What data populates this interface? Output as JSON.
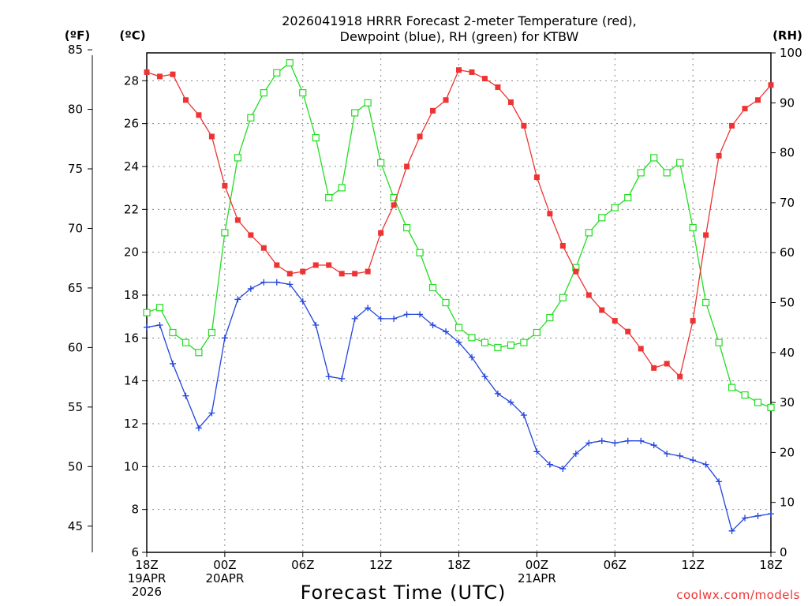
{
  "chart_data": {
    "type": "line",
    "title_line1": "2026041918 HRRR Forecast 2-meter Temperature (red),",
    "title_line2": "Dewpoint (blue), RH (green) for KTBW",
    "xlabel": "Forecast Time (UTC)",
    "units_f": "(ºF)",
    "units_c": "(ºC)",
    "units_rh": "(RH)",
    "credit": "coolwx.com/models",
    "x_range": [
      0,
      48
    ],
    "x_ticks": [
      {
        "hour": 0,
        "lines": [
          "18Z",
          "19APR",
          "2026"
        ]
      },
      {
        "hour": 6,
        "lines": [
          "00Z",
          "20APR"
        ]
      },
      {
        "hour": 12,
        "lines": [
          "06Z"
        ]
      },
      {
        "hour": 18,
        "lines": [
          "12Z"
        ]
      },
      {
        "hour": 24,
        "lines": [
          "18Z"
        ]
      },
      {
        "hour": 30,
        "lines": [
          "00Z",
          "21APR"
        ]
      },
      {
        "hour": 36,
        "lines": [
          "06Z"
        ]
      },
      {
        "hour": 42,
        "lines": [
          "12Z"
        ]
      },
      {
        "hour": 48,
        "lines": [
          "18Z"
        ]
      }
    ],
    "celsius_axis": {
      "range": [
        6,
        29.3
      ],
      "ticks": [
        6,
        8,
        10,
        12,
        14,
        16,
        18,
        20,
        22,
        24,
        26,
        28
      ]
    },
    "fahrenheit_axis": {
      "range": [
        42.8,
        84.74
      ],
      "ticks": [
        45,
        50,
        55,
        60,
        65,
        70,
        75,
        80,
        85
      ]
    },
    "rh_axis": {
      "range": [
        0,
        100
      ],
      "ticks": [
        0,
        10,
        20,
        30,
        40,
        50,
        60,
        70,
        80,
        90,
        100
      ]
    },
    "series": [
      {
        "name": "2-meter Temperature",
        "color": "#ee3333",
        "marker": "filled-square",
        "unit": "C",
        "values": [
          28.4,
          28.2,
          28.3,
          27.1,
          26.4,
          25.4,
          23.1,
          21.5,
          20.8,
          20.2,
          19.4,
          19.0,
          19.1,
          19.4,
          19.4,
          19.0,
          19.0,
          19.1,
          20.9,
          22.2,
          24.0,
          25.4,
          26.6,
          27.1,
          28.5,
          28.4,
          28.1,
          27.7,
          27.0,
          25.9,
          23.5,
          21.8,
          20.3,
          19.1,
          18.0,
          17.3,
          16.8,
          16.3,
          15.5,
          14.6,
          14.8,
          14.2,
          16.8,
          20.8,
          24.5,
          25.9,
          26.7,
          27.1,
          27.8
        ]
      },
      {
        "name": "Dewpoint",
        "color": "#2244dd",
        "marker": "plus",
        "unit": "C",
        "values": [
          16.5,
          16.6,
          14.8,
          13.3,
          11.8,
          12.5,
          16.0,
          17.8,
          18.3,
          18.6,
          18.6,
          18.5,
          17.7,
          16.6,
          14.2,
          14.1,
          16.9,
          17.4,
          16.9,
          16.9,
          17.1,
          17.1,
          16.6,
          16.3,
          15.8,
          15.1,
          14.2,
          13.4,
          13.0,
          12.4,
          10.7,
          10.1,
          9.9,
          10.6,
          11.1,
          11.2,
          11.1,
          11.2,
          11.2,
          11.0,
          10.6,
          10.5,
          10.3,
          10.1,
          9.3,
          7.0,
          7.6,
          7.7,
          7.8
        ]
      },
      {
        "name": "RH",
        "color": "#22dd22",
        "marker": "open-square",
        "unit": "%",
        "values": [
          48,
          49,
          44,
          42,
          40,
          44,
          64,
          79,
          87,
          92,
          96,
          98,
          92,
          83,
          71,
          73,
          88,
          90,
          78,
          71,
          65,
          60,
          53,
          50,
          45,
          43,
          42,
          41,
          41.5,
          42,
          44,
          47,
          51,
          57,
          64,
          67,
          69,
          71,
          76,
          79,
          76,
          78,
          65,
          50,
          42,
          33,
          31.5,
          30,
          29
        ]
      }
    ]
  }
}
